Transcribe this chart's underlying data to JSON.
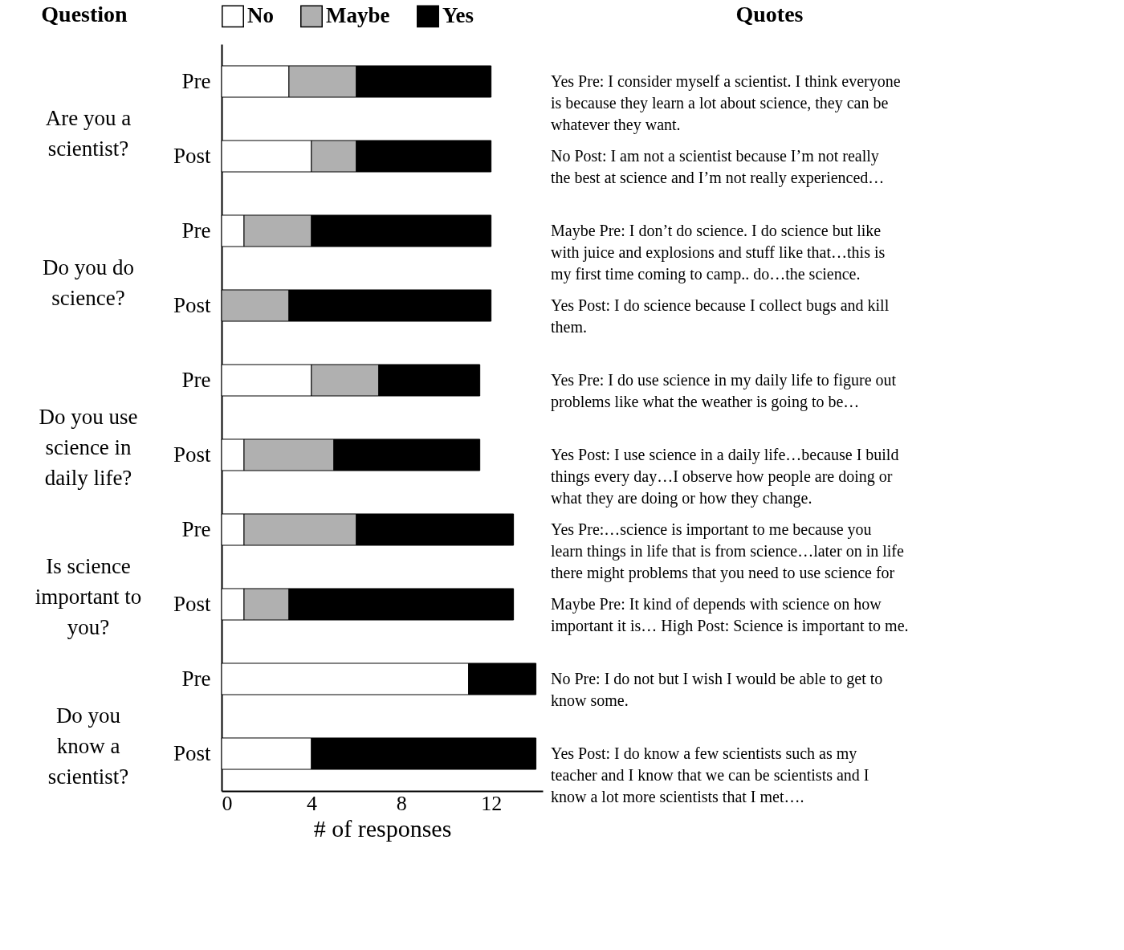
{
  "chart_data": {
    "type": "bar",
    "orientation": "horizontal",
    "stacked": true,
    "xlabel": "# of responses",
    "categories": [
      "Pre",
      "Post",
      "Pre",
      "Post",
      "Pre",
      "Post",
      "Pre",
      "Post",
      "Pre",
      "Post"
    ],
    "series": [
      {
        "name": "No",
        "color": "#ffffff",
        "values": [
          3,
          4,
          1,
          0,
          4,
          1,
          1,
          1,
          11,
          4
        ]
      },
      {
        "name": "Maybe",
        "color": "#b0b0b0",
        "values": [
          3,
          2,
          3,
          3,
          3,
          4,
          5,
          2,
          0,
          0
        ]
      },
      {
        "name": "Yes",
        "color": "#000000",
        "values": [
          6,
          6,
          8,
          9,
          4.5,
          6.5,
          7,
          10,
          3,
          10
        ]
      }
    ],
    "xlim": [
      0,
      14.3
    ],
    "xticks": [
      0,
      4,
      8,
      12
    ],
    "grid": false,
    "legend": "top",
    "annotations": [
      "Question",
      "Are you a\nscientist?",
      "Do you do\nscience?",
      "Do you use\nscience in\ndaily life?",
      "Is science\nimportant to\nyou?",
      "Do you\nknow a\nscientist?",
      "Quotes",
      "Yes Pre: I consider myself a scientist. I think everyone\nis because they learn a lot about science, they can be\nwhatever they want.",
      "No Post: I am not a scientist because I’m not really\nthe best at science and I’m not really experienced…",
      "Maybe Pre: I don’t do science. I do science but like\nwith juice and explosions and stuff like that…this is\nmy first time coming to camp.. do…the science.",
      "Yes Post: I do science because I collect bugs and kill\nthem.",
      "Yes Pre: I do use science in my daily life to figure out\nproblems like what the weather is going to be…",
      "Yes Post: I use science in a daily life…because I build\nthings every day…I observe how people are doing or\nwhat they are doing or how they change.",
      "Yes Pre:…science is important to me because you\nlearn things in life that is from science…later on in life\nthere might problems that you need to use science for",
      "Maybe Pre: It kind of depends with science on how\nimportant it is… High Post: Science is important to me.",
      "No Pre: I do not but I wish I would be able to get to\nknow some.",
      "Yes Post: I do know a few scientists such as my\nteacher and I know that we can be scientists and I\nknow a lot more scientists that I met…."
    ]
  }
}
